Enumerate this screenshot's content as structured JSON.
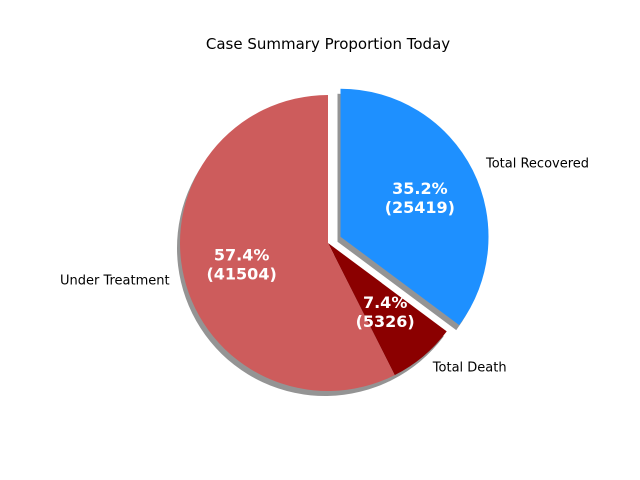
{
  "chart_data": {
    "type": "pie",
    "title": "Case Summary Proportion Today",
    "slices": [
      {
        "label": "Total Recovered",
        "value": 25419,
        "percent_label": "35.2%",
        "value_label": "(25419)",
        "color": "#1e90ff",
        "exploded": true
      },
      {
        "label": "Total Death",
        "value": 5326,
        "percent_label": "7.4%",
        "value_label": "(5326)",
        "color": "#8b0000",
        "exploded": false
      },
      {
        "label": "Under Treatment",
        "value": 41504,
        "percent_label": "57.4%",
        "value_label": "(41504)",
        "color": "#cd5c5c",
        "exploded": false
      }
    ],
    "start_angle_deg": 90,
    "direction": "clockwise",
    "shadow": true,
    "legend": "none"
  }
}
